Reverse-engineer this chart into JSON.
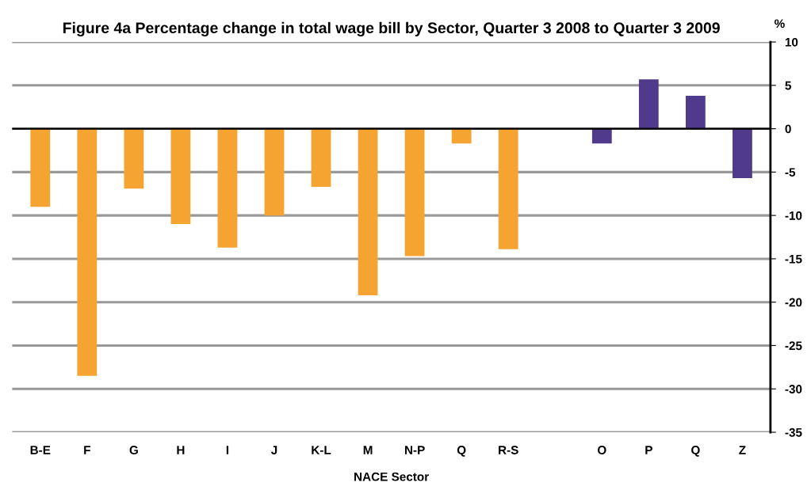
{
  "chart_data": {
    "type": "bar",
    "title": "Figure 4a Percentage change in total wage bill by Sector, Quarter 3 2008 to Quarter 3 2009",
    "xlabel": "NACE Sector",
    "ylabel": "%",
    "categories": [
      "B-E",
      "F",
      "G",
      "H",
      "I",
      "J",
      "K-L",
      "M",
      "N-P",
      "Q",
      "R-S",
      null,
      "O",
      "P",
      "Q",
      "Z"
    ],
    "values": [
      -9.0,
      -28.5,
      -6.9,
      -11.0,
      -13.7,
      -10.0,
      -6.7,
      -19.2,
      -14.7,
      -1.7,
      -13.9,
      null,
      -1.7,
      5.7,
      3.8,
      -5.7
    ],
    "colors": [
      "#f5a431",
      "#f5a431",
      "#f5a431",
      "#f5a431",
      "#f5a431",
      "#f5a431",
      "#f5a431",
      "#f5a431",
      "#f5a431",
      "#f5a431",
      "#f5a431",
      null,
      "#4f3a8c",
      "#4f3a8c",
      "#4f3a8c",
      "#4f3a8c"
    ],
    "ylim": [
      -35,
      10
    ],
    "yticks": [
      -35,
      -30,
      -25,
      -20,
      -15,
      -10,
      -5,
      0,
      5,
      10
    ],
    "grid": "y",
    "legend": false
  }
}
